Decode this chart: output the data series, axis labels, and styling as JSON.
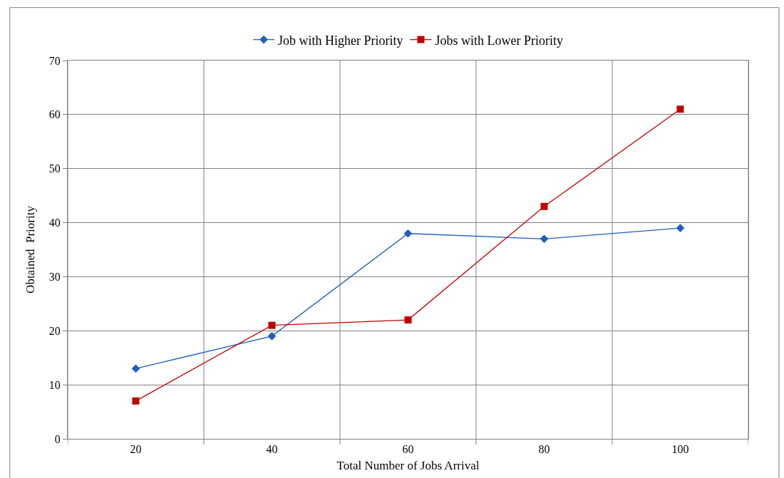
{
  "chart_data": {
    "type": "line",
    "xlabel": "Total Number of Jobs Arrival",
    "ylabel": "Obtained  Priority",
    "categories": [
      "20",
      "40",
      "60",
      "80",
      "100"
    ],
    "series": [
      {
        "name": "Job with Higher Priority",
        "color": "#1f5fbf",
        "marker": "diamond",
        "values": [
          13,
          19,
          38,
          37,
          39
        ]
      },
      {
        "name": "Jobs with Lower Priority",
        "color": "#c00000",
        "marker": "square",
        "values": [
          7,
          21,
          22,
          43,
          61
        ]
      }
    ],
    "ylim": [
      0,
      70
    ],
    "yticks": [
      0,
      10,
      20,
      30,
      40,
      50,
      60,
      70
    ],
    "grid": true,
    "legend": "top"
  }
}
